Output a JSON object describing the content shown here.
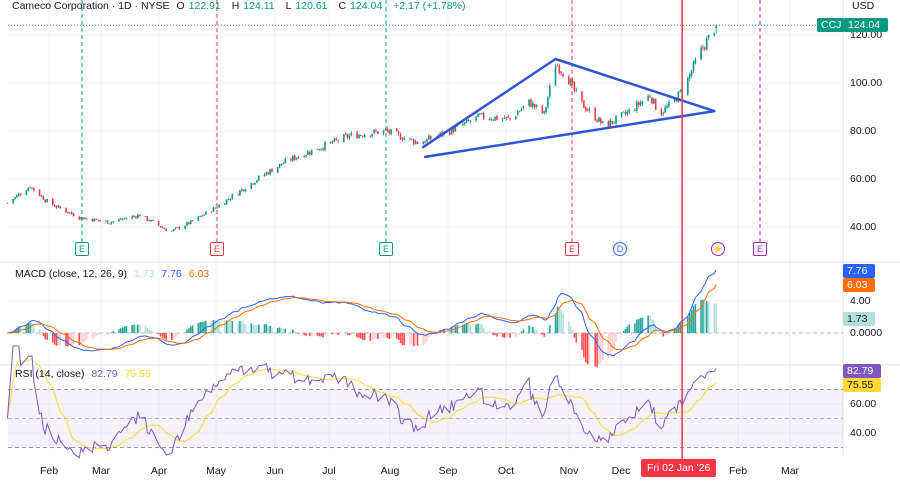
{
  "header": {
    "symbol_title": "Cameco Corporation · 1D · NYSE",
    "open_label": "O",
    "open": "122.91",
    "high_label": "H",
    "high": "124.11",
    "low_label": "L",
    "low": "120.61",
    "close_label": "C",
    "close": "124.04",
    "change": "+2.17 (+1.78%)"
  },
  "price_axis": {
    "currency": "USD",
    "ticks": [
      "120.00",
      "100.00",
      "80.00",
      "60.00",
      "40.00"
    ],
    "ticker_tag": "CCJ",
    "last_price_tag": "124.04"
  },
  "macd": {
    "title": "MACD (close, 12, 26, 9)",
    "hist": "1.73",
    "macd": "7.76",
    "signal": "6.03",
    "ticks": [
      "4.00",
      "0.0000"
    ],
    "tag_macd": "7.76",
    "tag_signal": "6.03",
    "tag_hist": "1.73"
  },
  "rsi": {
    "title": "RSI (14, close)",
    "rsi": "82.79",
    "ma": "75.55",
    "ticks": [
      "60.00",
      "40.00"
    ],
    "tag_rsi": "82.79",
    "tag_ma": "75.55"
  },
  "time_axis": {
    "months": [
      "Feb",
      "Mar",
      "Apr",
      "May",
      "Jun",
      "Jul",
      "Aug",
      "Sep",
      "Oct",
      "Nov",
      "Dec",
      "Feb",
      "Mar"
    ],
    "crosshair_label": "Fri 02 Jan '26"
  },
  "events": [
    {
      "label": "E",
      "type": "earnings",
      "color": "#089981"
    },
    {
      "label": "E",
      "type": "earnings",
      "color": "#f23645"
    },
    {
      "label": "E",
      "type": "earnings",
      "color": "#089981"
    },
    {
      "label": "E",
      "type": "earnings",
      "color": "#f23645"
    },
    {
      "label": "D",
      "type": "dividend",
      "color": "#2962ff"
    },
    {
      "label": "⚡",
      "type": "split-icon",
      "color": "#9c27b0"
    },
    {
      "label": "E",
      "type": "earnings-upcoming",
      "color": "#9c27b0"
    }
  ],
  "colors": {
    "up": "#089981",
    "down": "#f23645",
    "macd": "#2962ff",
    "signal": "#ff6d00",
    "rsi": "#7e57c2",
    "rsi_ma": "#fdd835",
    "trendline": "#2f55d4",
    "crosshair": "#f23645"
  },
  "chart_data": {
    "type": "candlestick",
    "ylim": [
      30,
      128
    ],
    "price_anchors": [
      [
        "2025-01-10",
        50
      ],
      [
        "2025-01-22",
        57
      ],
      [
        "2025-02-01",
        50
      ],
      [
        "2025-02-17",
        44
      ],
      [
        "2025-03-05",
        42
      ],
      [
        "2025-03-21",
        45
      ],
      [
        "2025-04-06",
        38
      ],
      [
        "2025-04-17",
        42
      ],
      [
        "2025-04-30",
        48
      ],
      [
        "2025-05-13",
        55
      ],
      [
        "2025-05-26",
        62
      ],
      [
        "2025-06-08",
        68
      ],
      [
        "2025-06-24",
        73
      ],
      [
        "2025-07-10",
        78
      ],
      [
        "2025-07-29",
        80
      ],
      [
        "2025-08-16",
        75
      ],
      [
        "2025-09-01",
        80
      ],
      [
        "2025-09-17",
        86
      ],
      [
        "2025-10-03",
        85
      ],
      [
        "2025-10-13",
        92
      ],
      [
        "2025-10-21",
        87
      ],
      [
        "2025-10-27",
        108
      ],
      [
        "2025-11-02",
        103
      ],
      [
        "2025-11-09",
        92
      ],
      [
        "2025-11-22",
        82
      ],
      [
        "2025-12-05",
        88
      ],
      [
        "2025-12-16",
        95
      ],
      [
        "2025-12-21",
        87
      ],
      [
        "2025-12-28",
        92
      ],
      [
        "2026-01-03",
        98
      ],
      [
        "2026-01-11",
        112
      ],
      [
        "2026-01-20",
        124.04
      ]
    ],
    "last_candle": {
      "open": 122.91,
      "high": 124.11,
      "low": 120.61,
      "close": 124.04
    },
    "trendlines": [
      [
        [
          "2025-08-18",
          73.3
        ],
        [
          "2025-10-27",
          110
        ]
      ],
      [
        [
          "2025-10-27",
          110
        ],
        [
          "2026-01-19",
          88.3
        ]
      ],
      [
        [
          "2025-08-19",
          69.2
        ],
        [
          "2026-01-19",
          88.3
        ]
      ]
    ],
    "crosshair_date": "2026-01-02",
    "rsi_bands": [
      30,
      70
    ]
  }
}
